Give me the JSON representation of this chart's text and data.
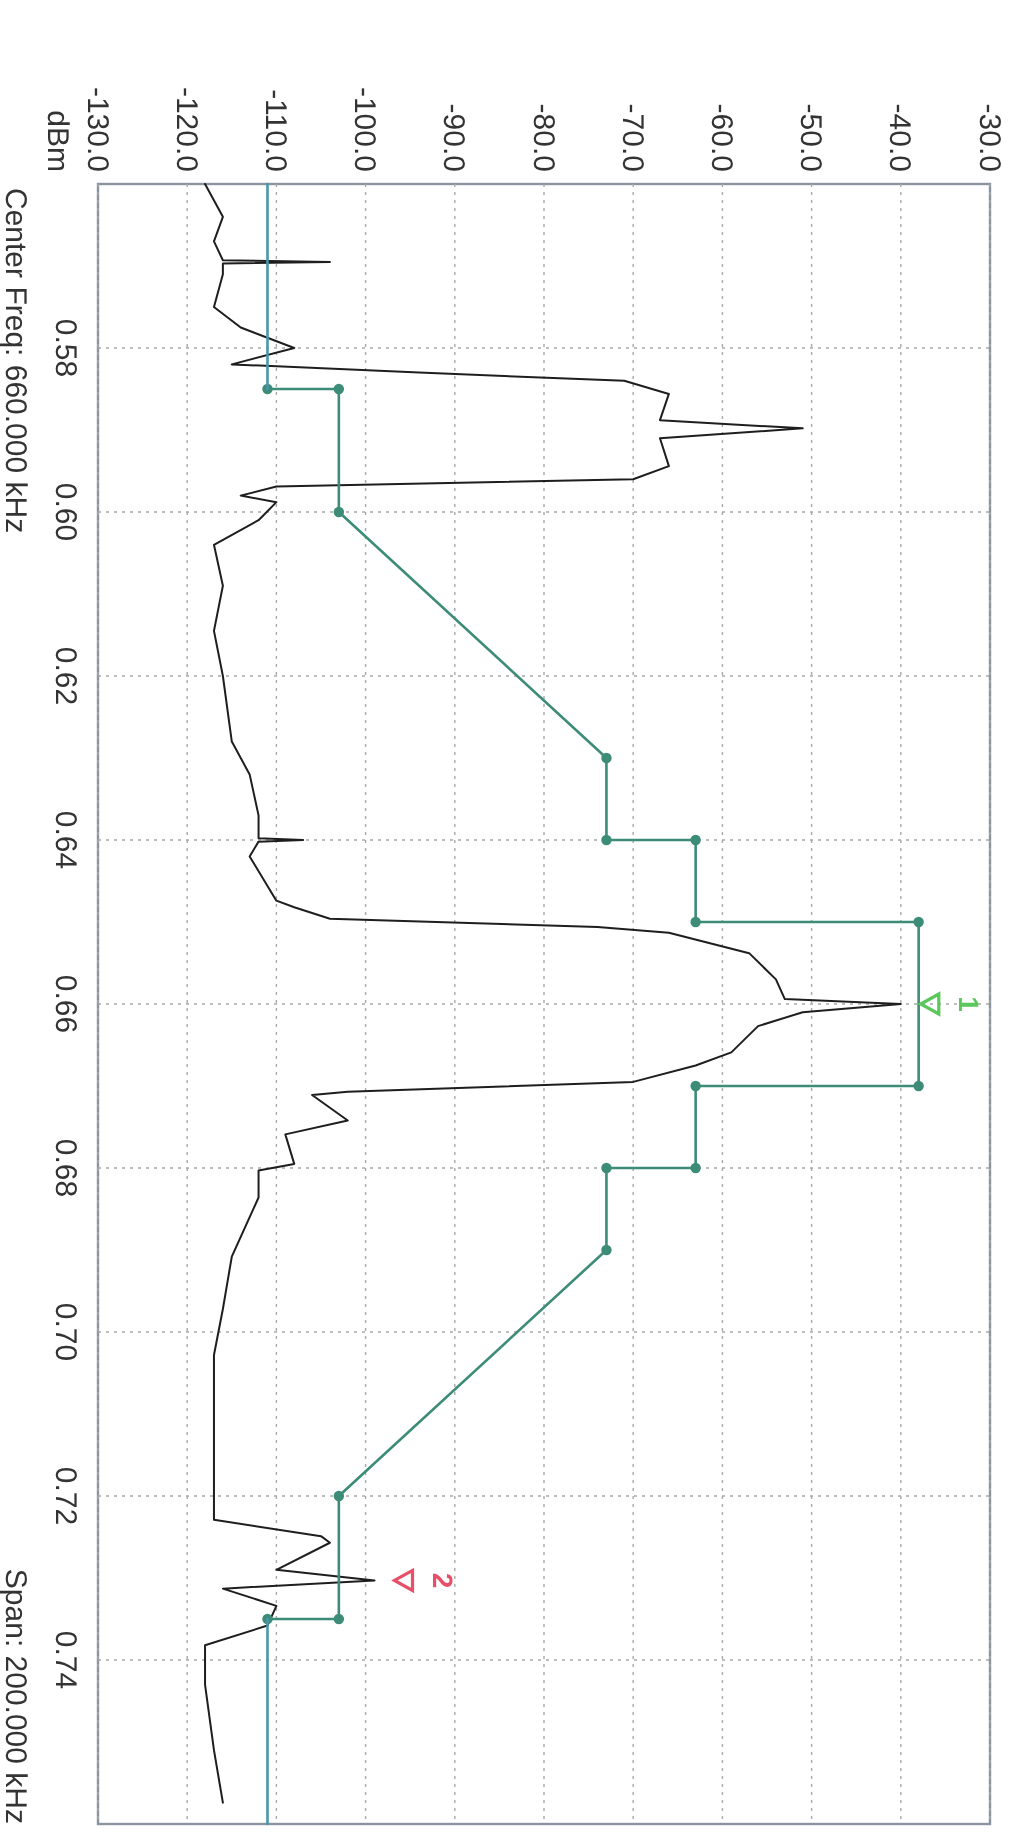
{
  "chart_data": {
    "type": "line",
    "xlim": [
      -130,
      -30
    ],
    "xticks": [
      {
        "value": -130,
        "label": "-130.0"
      },
      {
        "value": -120,
        "label": "-120.0"
      },
      {
        "value": -110,
        "label": "-110.0"
      },
      {
        "value": -100,
        "label": "-100.0"
      },
      {
        "value": -90,
        "label": "-90.0"
      },
      {
        "value": -80,
        "label": "-80.0"
      },
      {
        "value": -70,
        "label": "-70.0"
      },
      {
        "value": -60,
        "label": "-60.0"
      },
      {
        "value": -50,
        "label": "-50.0"
      },
      {
        "value": -40,
        "label": "-40.0"
      },
      {
        "value": -30,
        "label": "-30.0"
      }
    ],
    "ylim": [
      0.76,
      0.56
    ],
    "yticks": [
      0.58,
      {
        "value": 0.6,
        "label": "0.60"
      },
      0.62,
      0.64,
      0.66,
      0.68,
      {
        "value": 0.7,
        "label": "0.70"
      },
      0.72,
      0.74
    ],
    "grid": true,
    "series": [
      {
        "color": "#1e1e1e",
        "values": [
          0.56,
          0.564,
          0.567,
          0.5693,
          0.5695,
          0.5697,
          0.571,
          0.575,
          0.5775,
          0.58,
          0.582,
          0.583,
          0.584,
          0.5856,
          0.5888,
          0.5898,
          0.591,
          0.5944,
          0.596,
          0.5969,
          0.598,
          0.5988,
          0.601,
          0.604,
          0.609,
          0.6145,
          0.62,
          0.628,
          0.632,
          0.637,
          0.6398,
          0.64,
          0.6402,
          0.642,
          0.6474,
          0.6482,
          0.6496,
          0.6506,
          0.6513,
          0.6538,
          0.657,
          0.6594,
          0.66,
          0.661,
          0.6627,
          0.6659,
          0.6675,
          0.6695,
          0.6707,
          0.6711,
          0.6742,
          0.6759,
          0.6795,
          0.6803,
          0.6836,
          0.6908,
          0.6972,
          0.7028,
          0.7076,
          0.7141,
          0.7229,
          0.7249,
          0.7257,
          0.729,
          0.7303,
          0.7313,
          0.7334,
          0.7358,
          0.7382,
          0.743,
          0.751,
          0.7574
        ],
        "x": [
          -118,
          -116,
          -117,
          -116,
          -104,
          -116,
          -116,
          -117,
          -114,
          -108,
          -115,
          -94,
          -71,
          -66,
          -67,
          -51,
          -67,
          -66,
          -70,
          -110,
          -114,
          -110,
          -112,
          -117,
          -116,
          -117,
          -116,
          -115,
          -113,
          -112,
          -112,
          -107,
          -112,
          -113,
          -110,
          -108,
          -104,
          -74,
          -66,
          -57,
          -54,
          -53,
          -40,
          -51,
          -56,
          -59,
          -63,
          -70,
          -102,
          -106,
          -102,
          -109,
          -108,
          -112,
          -112,
          -115,
          -116,
          -117,
          -117,
          -117,
          -117,
          -105,
          -104,
          -110,
          -99,
          -116,
          -110,
          -111,
          -118,
          -118,
          -117,
          -116
        ]
      },
      {
        "color": "#3c8c78",
        "marker": "circle",
        "x": [
          -111,
          -103,
          -103,
          -73,
          -73,
          -63,
          -63,
          -38,
          -38,
          -63,
          -63,
          -73,
          -73,
          -103,
          -103,
          -111
        ],
        "values": [
          0.585,
          0.585,
          0.6,
          0.63,
          0.64,
          0.64,
          0.65,
          0.65,
          0.67,
          0.67,
          0.68,
          0.68,
          0.69,
          0.72,
          0.735,
          0.735
        ]
      },
      {
        "color": "#4a96aa",
        "x": [
          -111,
          -111
        ],
        "values": [
          0.56,
          0.585
        ]
      },
      {
        "color": "#4a96aa",
        "x": [
          -111,
          -111
        ],
        "values": [
          0.735,
          0.76
        ]
      }
    ],
    "annotations": [
      "dBm",
      "Center Freq: 660.000 kHz",
      "Span: 200.000 kHz",
      {
        "text": "1",
        "x": -40,
        "y": 0.66
      },
      {
        "text": "2",
        "x": -99,
        "y": 0.7303
      }
    ]
  }
}
